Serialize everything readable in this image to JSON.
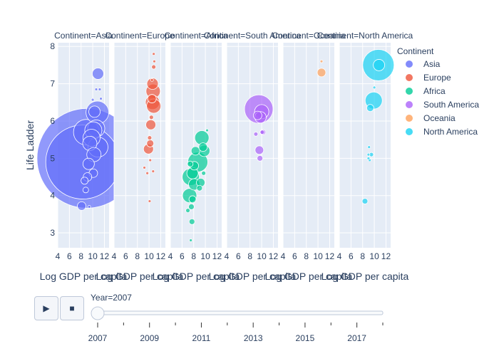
{
  "chart_data": {
    "type": "scatter",
    "facet_label_prefix": "Continent=",
    "facets": [
      "Asia",
      "Europe",
      "Africa",
      "South America",
      "Oceania",
      "North America"
    ],
    "xlabel": "Log GDP per capita",
    "ylabel": "Life Ladder",
    "xlim": [
      4,
      12.8
    ],
    "ylim": [
      2.6,
      8.1
    ],
    "xticks": [
      4,
      6,
      8,
      10,
      12
    ],
    "yticks": [
      3,
      4,
      5,
      6,
      7,
      8
    ],
    "legend": {
      "title": "Continent",
      "position": "right",
      "items": [
        {
          "name": "Asia",
          "color": "#636efa"
        },
        {
          "name": "Europe",
          "color": "#ef553b"
        },
        {
          "name": "Africa",
          "color": "#00cc96"
        },
        {
          "name": "South America",
          "color": "#ab63fa"
        },
        {
          "name": "Oceania",
          "color": "#ffa15a"
        },
        {
          "name": "North America",
          "color": "#19d3f3"
        }
      ]
    },
    "series": [
      {
        "name": "Asia",
        "color": "#636efa",
        "points": [
          [
            10.9,
            7.27,
            8
          ],
          [
            10.3,
            6.25,
            8
          ],
          [
            10.8,
            6.23,
            16
          ],
          [
            10.6,
            5.8,
            12
          ],
          [
            10.1,
            5.75,
            12
          ],
          [
            8.9,
            5.7,
            18
          ],
          [
            10.9,
            5.3,
            14
          ],
          [
            9.8,
            5.55,
            12
          ],
          [
            9.5,
            5.4,
            10
          ],
          [
            9.0,
            5.0,
            70
          ],
          [
            8.3,
            4.9,
            52
          ],
          [
            10.2,
            5.1,
            10
          ],
          [
            9.3,
            4.85,
            8
          ],
          [
            10.1,
            4.6,
            6
          ],
          [
            9.1,
            4.5,
            6
          ],
          [
            8.6,
            4.4,
            5
          ],
          [
            8.8,
            4.15,
            4
          ],
          [
            8.1,
            3.72,
            6
          ],
          [
            9.4,
            3.7,
            2
          ],
          [
            10.6,
            6.85,
            2
          ],
          [
            10.0,
            6.57,
            2
          ],
          [
            11.2,
            6.85,
            2
          ],
          [
            11.4,
            6.6,
            2
          ]
        ]
      },
      {
        "name": "Europe",
        "color": "#ef553b",
        "points": [
          [
            10.6,
            7.0,
            8
          ],
          [
            10.7,
            6.8,
            10
          ],
          [
            10.6,
            6.5,
            10
          ],
          [
            10.8,
            6.4,
            10
          ],
          [
            10.5,
            6.6,
            6
          ],
          [
            10.3,
            5.9,
            7
          ],
          [
            9.9,
            5.25,
            7
          ],
          [
            10.2,
            5.4,
            5
          ],
          [
            10.8,
            7.45,
            3
          ],
          [
            10.9,
            7.6,
            2
          ],
          [
            10.8,
            7.8,
            2
          ],
          [
            10.5,
            7.1,
            2
          ],
          [
            10.4,
            6.1,
            3
          ],
          [
            10.1,
            5.55,
            3
          ],
          [
            9.2,
            4.75,
            2
          ],
          [
            10.2,
            4.95,
            2
          ],
          [
            9.7,
            4.6,
            2
          ],
          [
            10.7,
            4.65,
            2
          ],
          [
            10.1,
            3.85,
            2
          ]
        ]
      },
      {
        "name": "Africa",
        "color": "#00cc96",
        "points": [
          [
            9.4,
            5.55,
            10
          ],
          [
            9.8,
            5.2,
            8
          ],
          [
            9.6,
            5.3,
            6
          ],
          [
            8.3,
            5.2,
            6
          ],
          [
            10.3,
            5.75,
            2
          ],
          [
            8.7,
            4.9,
            14
          ],
          [
            7.5,
            4.5,
            12
          ],
          [
            7.8,
            4.6,
            8
          ],
          [
            8.1,
            4.8,
            6
          ],
          [
            8.1,
            4.3,
            8
          ],
          [
            9.2,
            4.35,
            6
          ],
          [
            7.3,
            4.0,
            10
          ],
          [
            7.8,
            3.9,
            5
          ],
          [
            7.6,
            3.7,
            4
          ],
          [
            7.0,
            3.6,
            3
          ],
          [
            7.7,
            3.3,
            4
          ],
          [
            7.5,
            2.8,
            2
          ],
          [
            9.0,
            4.2,
            4
          ],
          [
            7.4,
            4.85,
            4
          ],
          [
            9.7,
            4.6,
            3
          ]
        ]
      },
      {
        "name": "South America",
        "color": "#ab63fa",
        "points": [
          [
            9.5,
            6.32,
            20
          ],
          [
            10.0,
            6.25,
            10
          ],
          [
            9.8,
            6.1,
            8
          ],
          [
            9.3,
            6.15,
            6
          ],
          [
            9.6,
            5.22,
            6
          ],
          [
            9.7,
            5.0,
            4
          ],
          [
            10.2,
            5.7,
            4
          ],
          [
            9.0,
            5.65,
            3
          ],
          [
            10.1,
            5.7,
            3
          ]
        ]
      },
      {
        "name": "Oceania",
        "color": "#ffa15a",
        "points": [
          [
            10.6,
            7.3,
            6
          ],
          [
            10.6,
            7.6,
            2
          ]
        ]
      },
      {
        "name": "North America",
        "color": "#19d3f3",
        "points": [
          [
            10.7,
            7.5,
            22
          ],
          [
            10.8,
            7.5,
            8
          ],
          [
            9.9,
            6.55,
            12
          ],
          [
            9.3,
            6.35,
            5
          ],
          [
            10.0,
            6.9,
            2
          ],
          [
            9.0,
            5.1,
            2
          ],
          [
            9.5,
            5.1,
            3
          ],
          [
            9.1,
            5.3,
            2
          ],
          [
            9.2,
            4.95,
            2
          ],
          [
            9.0,
            5.0,
            2
          ],
          [
            8.4,
            3.85,
            4
          ]
        ]
      }
    ]
  },
  "slider": {
    "current_label": "Year=2007",
    "ticks": [
      "2007",
      "2009",
      "2011",
      "2013",
      "2015",
      "2017"
    ],
    "value": 2007
  },
  "controls": {
    "play_icon": "▶",
    "stop_icon": "■"
  }
}
